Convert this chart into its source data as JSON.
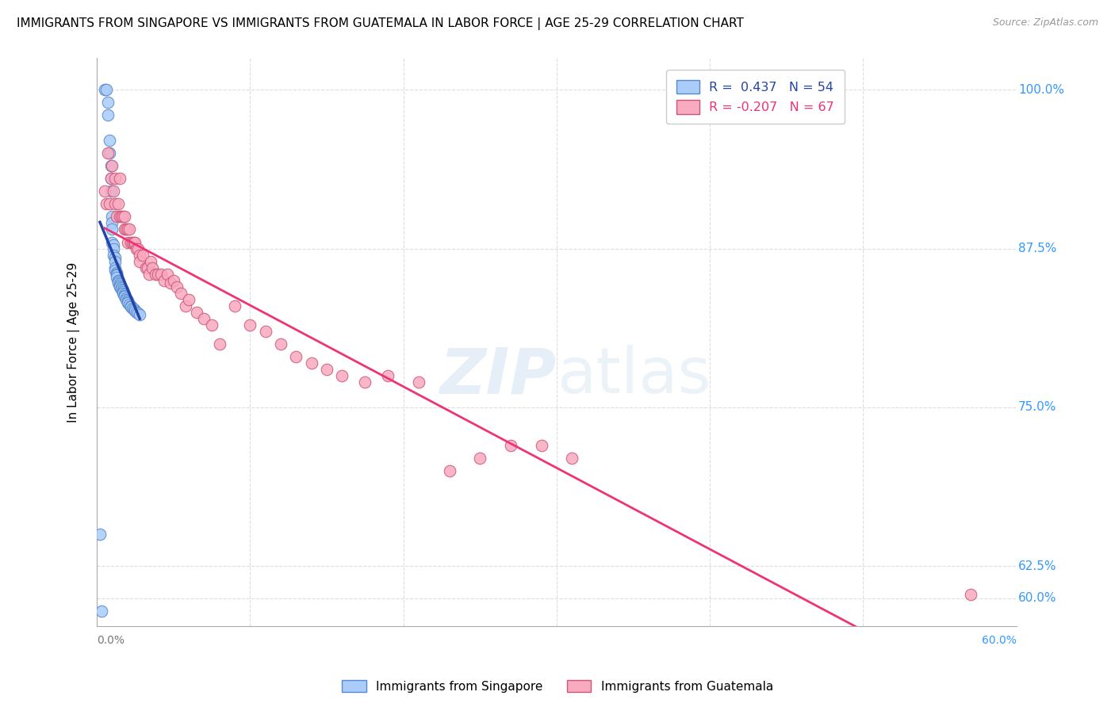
{
  "title": "IMMIGRANTS FROM SINGAPORE VS IMMIGRANTS FROM GUATEMALA IN LABOR FORCE | AGE 25-29 CORRELATION CHART",
  "source": "Source: ZipAtlas.com",
  "ylabel": "In Labor Force | Age 25-29",
  "y_ticks": [
    0.6,
    0.625,
    0.75,
    0.875,
    1.0
  ],
  "y_tick_labels": [
    "60.0%",
    "62.5%",
    "75.0%",
    "87.5%",
    "100.0%"
  ],
  "xlim": [
    0.0,
    0.6
  ],
  "ylim": [
    0.578,
    1.025
  ],
  "singapore_color": "#aaccf8",
  "singapore_edge": "#5588cc",
  "guatemala_color": "#f8aac0",
  "guatemala_edge": "#cc5577",
  "singapore_line_color": "#2244aa",
  "guatemala_line_color": "#ee3377",
  "singapore_R": 0.437,
  "singapore_N": 54,
  "guatemala_R": -0.207,
  "guatemala_N": 67,
  "watermark": "ZIPatlas",
  "singapore_x": [
    0.005,
    0.006,
    0.007,
    0.007,
    0.008,
    0.008,
    0.009,
    0.009,
    0.009,
    0.01,
    0.01,
    0.01,
    0.01,
    0.011,
    0.011,
    0.011,
    0.012,
    0.012,
    0.012,
    0.012,
    0.013,
    0.013,
    0.013,
    0.013,
    0.014,
    0.014,
    0.014,
    0.015,
    0.015,
    0.015,
    0.016,
    0.016,
    0.017,
    0.017,
    0.017,
    0.018,
    0.018,
    0.018,
    0.019,
    0.019,
    0.02,
    0.02,
    0.02,
    0.021,
    0.022,
    0.022,
    0.023,
    0.024,
    0.025,
    0.026,
    0.027,
    0.028,
    0.002,
    0.003
  ],
  "singapore_y": [
    1.0,
    1.0,
    0.99,
    0.98,
    0.96,
    0.95,
    0.94,
    0.93,
    0.92,
    0.9,
    0.895,
    0.89,
    0.88,
    0.878,
    0.875,
    0.87,
    0.868,
    0.865,
    0.86,
    0.858,
    0.856,
    0.855,
    0.854,
    0.852,
    0.85,
    0.849,
    0.848,
    0.847,
    0.846,
    0.845,
    0.844,
    0.843,
    0.842,
    0.841,
    0.84,
    0.839,
    0.838,
    0.837,
    0.836,
    0.835,
    0.834,
    0.833,
    0.832,
    0.831,
    0.83,
    0.829,
    0.828,
    0.827,
    0.826,
    0.825,
    0.824,
    0.823,
    0.65,
    0.59
  ],
  "guatemala_x": [
    0.005,
    0.006,
    0.007,
    0.008,
    0.009,
    0.01,
    0.011,
    0.012,
    0.012,
    0.013,
    0.014,
    0.015,
    0.015,
    0.016,
    0.017,
    0.018,
    0.018,
    0.019,
    0.02,
    0.02,
    0.021,
    0.022,
    0.023,
    0.024,
    0.025,
    0.026,
    0.027,
    0.028,
    0.028,
    0.03,
    0.032,
    0.033,
    0.034,
    0.035,
    0.036,
    0.038,
    0.04,
    0.042,
    0.044,
    0.046,
    0.048,
    0.05,
    0.052,
    0.055,
    0.058,
    0.06,
    0.065,
    0.07,
    0.075,
    0.08,
    0.09,
    0.1,
    0.11,
    0.12,
    0.13,
    0.14,
    0.15,
    0.16,
    0.175,
    0.19,
    0.21,
    0.23,
    0.25,
    0.27,
    0.29,
    0.31,
    0.57
  ],
  "guatemala_y": [
    0.92,
    0.91,
    0.95,
    0.91,
    0.93,
    0.94,
    0.92,
    0.93,
    0.91,
    0.9,
    0.91,
    0.9,
    0.93,
    0.9,
    0.9,
    0.89,
    0.9,
    0.89,
    0.89,
    0.88,
    0.89,
    0.88,
    0.88,
    0.88,
    0.88,
    0.875,
    0.875,
    0.87,
    0.865,
    0.87,
    0.86,
    0.86,
    0.855,
    0.865,
    0.86,
    0.855,
    0.855,
    0.855,
    0.85,
    0.855,
    0.848,
    0.85,
    0.845,
    0.84,
    0.83,
    0.835,
    0.825,
    0.82,
    0.815,
    0.8,
    0.83,
    0.815,
    0.81,
    0.8,
    0.79,
    0.785,
    0.78,
    0.775,
    0.77,
    0.775,
    0.77,
    0.7,
    0.71,
    0.72,
    0.72,
    0.71,
    0.603
  ]
}
